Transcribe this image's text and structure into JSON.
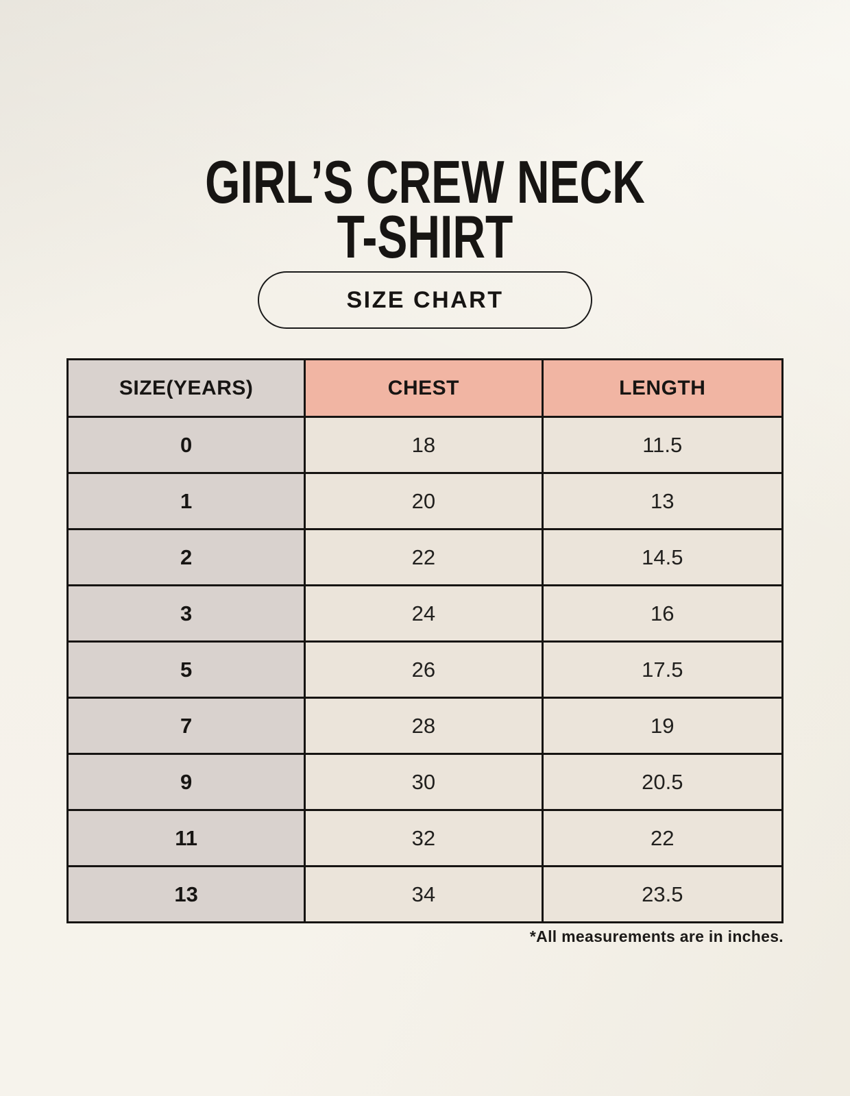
{
  "page": {
    "title_line1": "GIRL’S CREW NECK",
    "title_line2": "T-SHIRT",
    "badge": "SIZE CHART",
    "footnote": "*All measurements are in inches."
  },
  "chart_data": {
    "type": "table",
    "title": "GIRL’S CREW NECK T-SHIRT",
    "subtitle": "SIZE CHART",
    "columns": [
      "SIZE(YEARS)",
      "CHEST",
      "LENGTH"
    ],
    "rows": [
      [
        "0",
        "18",
        "11.5"
      ],
      [
        "1",
        "20",
        "13"
      ],
      [
        "2",
        "22",
        "14.5"
      ],
      [
        "3",
        "24",
        "16"
      ],
      [
        "5",
        "26",
        "17.5"
      ],
      [
        "7",
        "28",
        "19"
      ],
      [
        "9",
        "30",
        "20.5"
      ],
      [
        "11",
        "32",
        "22"
      ],
      [
        "13",
        "34",
        "23.5"
      ]
    ],
    "units": "inches",
    "note": "*All measurements are in inches."
  },
  "colors": {
    "background": "#f4f1e9",
    "header_accent_salmon": "#f1b5a3",
    "size_column_gray": "#d9d2ce",
    "data_cell_cream": "#ebe4da",
    "table_border": "#161412",
    "text": "#171513"
  }
}
